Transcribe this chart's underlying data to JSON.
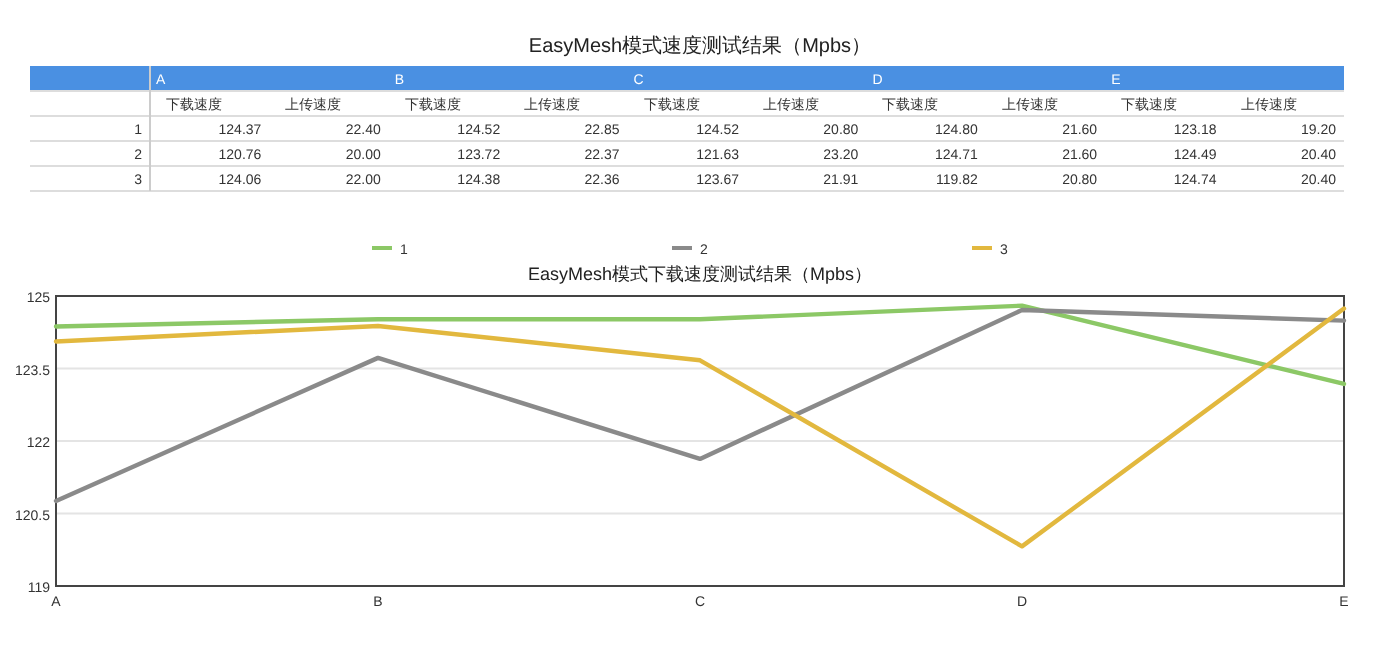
{
  "chart_data": [
    {
      "type": "other",
      "title": "EasyMesh模式速度测试结果（Mpbs）",
      "annotations": [
        "A",
        "B",
        "C",
        "D",
        "E",
        "下载速度",
        "上传速度",
        "下载速度",
        "上传速度",
        "下载速度",
        "上传速度",
        "下载速度",
        "上传速度",
        "下载速度",
        "上传速度",
        "1",
        "124.37",
        "22.40",
        "124.52",
        "22.85",
        "124.52",
        "20.80",
        "124.80",
        "21.60",
        "123.18",
        "19.20",
        "2",
        "120.76",
        "20.00",
        "123.72",
        "22.37",
        "121.63",
        "23.20",
        "124.71",
        "21.60",
        "124.49",
        "20.40",
        "3",
        "124.06",
        "22.00",
        "124.38",
        "22.36",
        "123.67",
        "21.91",
        "119.82",
        "20.80",
        "124.74",
        "20.40"
      ]
    },
    {
      "type": "line",
      "title": "EasyMesh模式下载速度测试结果（Mpbs）",
      "categories": [
        "A",
        "B",
        "C",
        "D",
        "E"
      ],
      "ylim": [
        119,
        125
      ],
      "yticks": [
        119,
        120.5,
        122,
        123.5,
        125
      ],
      "grid": "y",
      "legend": "top",
      "marker": "none",
      "line_style": "solid",
      "series": [
        {
          "name": "1",
          "color": "#8cc866",
          "values": [
            124.37,
            124.52,
            124.52,
            124.8,
            123.18
          ]
        },
        {
          "name": "2",
          "color": "#8a8a8a",
          "values": [
            120.76,
            123.72,
            121.63,
            124.71,
            124.49
          ]
        },
        {
          "name": "3",
          "color": "#e2b83e",
          "values": [
            124.06,
            124.38,
            123.67,
            119.82,
            124.74
          ]
        }
      ]
    }
  ]
}
